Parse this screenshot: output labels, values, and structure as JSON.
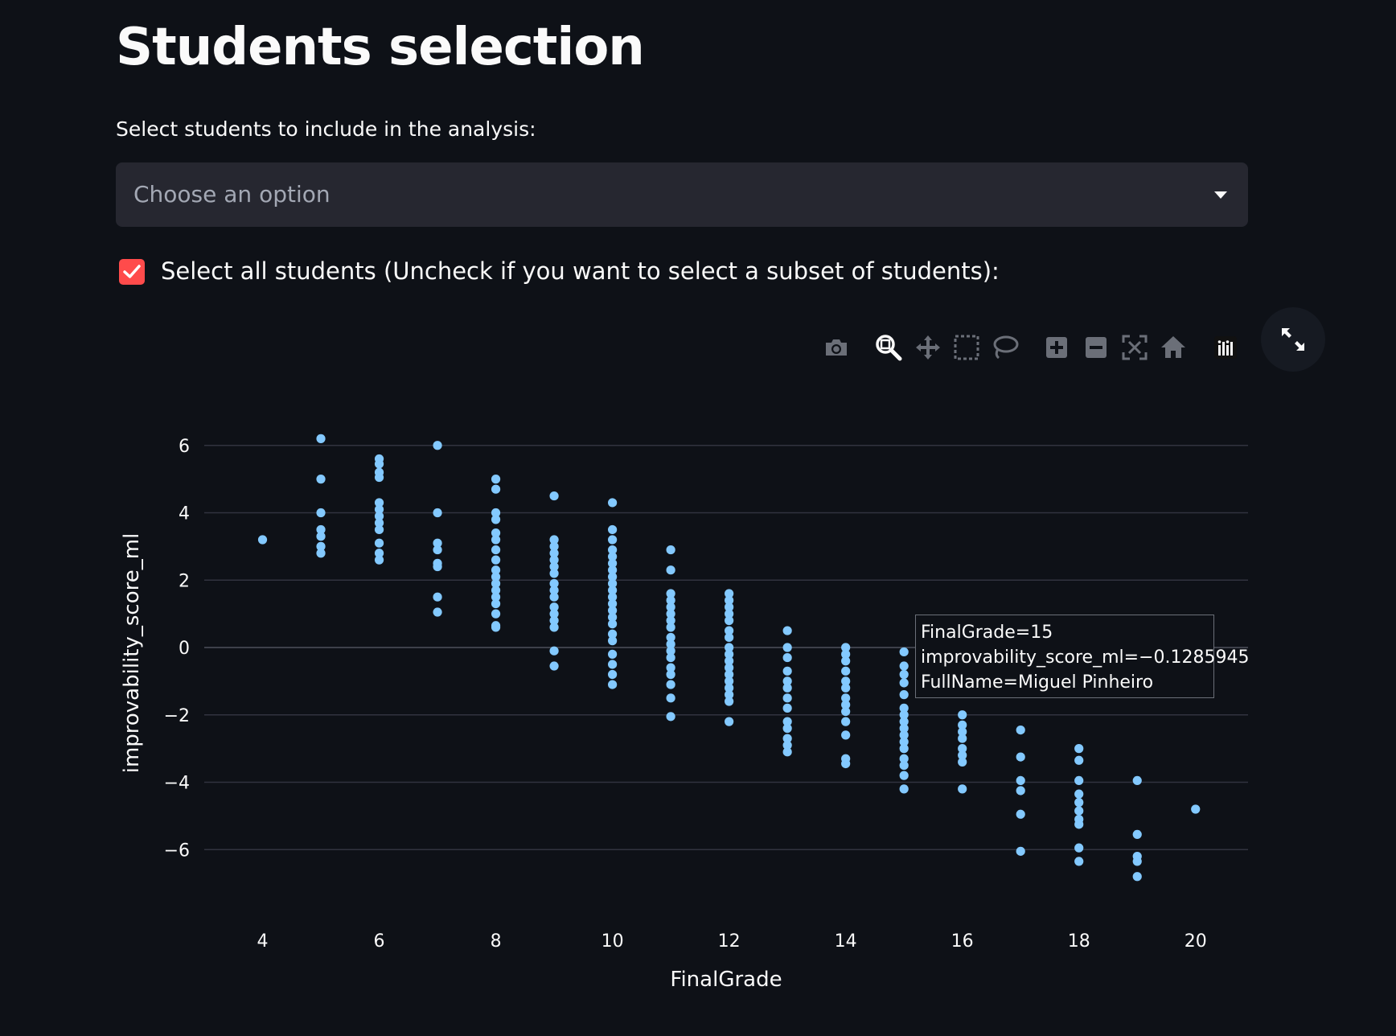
{
  "page": {
    "title": "Students selection"
  },
  "students_select": {
    "label": "Select students to include in the analysis:",
    "placeholder": "Choose an option"
  },
  "select_all": {
    "label": "Select all students (Uncheck if you want to select a subset of students):",
    "checked": true
  },
  "modebar": {
    "icons": [
      "camera-icon",
      "zoom-icon",
      "pan-icon",
      "box-select-icon",
      "lasso-icon",
      "zoom-in-icon",
      "zoom-out-icon",
      "autoscale-icon",
      "reset-axes-icon",
      "plotly-logo-icon"
    ],
    "active": "zoom-icon"
  },
  "fullscreen": {
    "icon": "expand-icon"
  },
  "colors": {
    "background": "#0e1117",
    "accent": "#ff4b4b",
    "marker": "#83c9ff",
    "grid": "#31333f"
  },
  "tooltip": {
    "line1": "FinalGrade=15",
    "line2": "improvability_score_ml=−0.1285945",
    "line3": "FullName=Miguel Pinheiro"
  },
  "chart_data": {
    "type": "scatter",
    "xlabel": "FinalGrade",
    "ylabel": "improvability_score_ml",
    "xlim": [
      3.0,
      20.9
    ],
    "ylim": [
      -8.0,
      8.0
    ],
    "x_ticks": [
      4,
      6,
      8,
      10,
      12,
      14,
      16,
      18,
      20
    ],
    "x_tick_labels": [
      "4",
      "6",
      "8",
      "10",
      "12",
      "14",
      "16",
      "18",
      "20"
    ],
    "y_ticks": [
      6,
      4,
      2,
      0,
      -2,
      -4,
      -6
    ],
    "y_tick_labels": [
      "6",
      "4",
      "2",
      "0",
      "−2",
      "−4",
      "−6"
    ],
    "grid": "horizontal",
    "points": [
      [
        4,
        3.2
      ],
      [
        5,
        6.2
      ],
      [
        5,
        5.0
      ],
      [
        5,
        4.0
      ],
      [
        5,
        3.5
      ],
      [
        5,
        3.3
      ],
      [
        5,
        3.0
      ],
      [
        5,
        2.8
      ],
      [
        6,
        5.6
      ],
      [
        6,
        5.45
      ],
      [
        6,
        5.2
      ],
      [
        6,
        5.05
      ],
      [
        6,
        4.3
      ],
      [
        6,
        4.1
      ],
      [
        6,
        3.9
      ],
      [
        6,
        3.7
      ],
      [
        6,
        3.5
      ],
      [
        6,
        3.1
      ],
      [
        6,
        2.8
      ],
      [
        6,
        2.6
      ],
      [
        7,
        6.0
      ],
      [
        7,
        4.0
      ],
      [
        7,
        3.1
      ],
      [
        7,
        2.9
      ],
      [
        7,
        2.5
      ],
      [
        7,
        2.4
      ],
      [
        7,
        1.5
      ],
      [
        7,
        1.05
      ],
      [
        8,
        5.0
      ],
      [
        8,
        4.7
      ],
      [
        8,
        4.0
      ],
      [
        8,
        3.8
      ],
      [
        8,
        3.4
      ],
      [
        8,
        3.2
      ],
      [
        8,
        2.9
      ],
      [
        8,
        2.6
      ],
      [
        8,
        2.3
      ],
      [
        8,
        2.1
      ],
      [
        8,
        1.9
      ],
      [
        8,
        1.7
      ],
      [
        8,
        1.5
      ],
      [
        8,
        1.3
      ],
      [
        8,
        1.0
      ],
      [
        8,
        0.65
      ],
      [
        8,
        0.6
      ],
      [
        9,
        4.5
      ],
      [
        9,
        3.2
      ],
      [
        9,
        3.0
      ],
      [
        9,
        2.8
      ],
      [
        9,
        2.6
      ],
      [
        9,
        2.4
      ],
      [
        9,
        2.2
      ],
      [
        9,
        1.9
      ],
      [
        9,
        1.7
      ],
      [
        9,
        1.5
      ],
      [
        9,
        1.2
      ],
      [
        9,
        1.0
      ],
      [
        9,
        0.8
      ],
      [
        9,
        0.6
      ],
      [
        9,
        -0.1
      ],
      [
        9,
        -0.55
      ],
      [
        10,
        4.3
      ],
      [
        10,
        3.5
      ],
      [
        10,
        3.2
      ],
      [
        10,
        2.9
      ],
      [
        10,
        2.7
      ],
      [
        10,
        2.5
      ],
      [
        10,
        2.3
      ],
      [
        10,
        2.1
      ],
      [
        10,
        1.9
      ],
      [
        10,
        1.7
      ],
      [
        10,
        1.5
      ],
      [
        10,
        1.3
      ],
      [
        10,
        1.1
      ],
      [
        10,
        0.9
      ],
      [
        10,
        0.7
      ],
      [
        10,
        0.4
      ],
      [
        10,
        0.2
      ],
      [
        10,
        -0.2
      ],
      [
        10,
        -0.5
      ],
      [
        10,
        -0.8
      ],
      [
        10,
        -1.1
      ],
      [
        11,
        2.9
      ],
      [
        11,
        2.3
      ],
      [
        11,
        1.6
      ],
      [
        11,
        1.4
      ],
      [
        11,
        1.2
      ],
      [
        11,
        1.0
      ],
      [
        11,
        0.8
      ],
      [
        11,
        0.6
      ],
      [
        11,
        0.3
      ],
      [
        11,
        0.1
      ],
      [
        11,
        -0.1
      ],
      [
        11,
        -0.3
      ],
      [
        11,
        -0.6
      ],
      [
        11,
        -0.8
      ],
      [
        11,
        -1.1
      ],
      [
        11,
        -1.5
      ],
      [
        11,
        -2.05
      ],
      [
        12,
        1.6
      ],
      [
        12,
        1.4
      ],
      [
        12,
        1.2
      ],
      [
        12,
        1.0
      ],
      [
        12,
        0.8
      ],
      [
        12,
        0.5
      ],
      [
        12,
        0.3
      ],
      [
        12,
        0.0
      ],
      [
        12,
        -0.2
      ],
      [
        12,
        -0.4
      ],
      [
        12,
        -0.6
      ],
      [
        12,
        -0.8
      ],
      [
        12,
        -1.0
      ],
      [
        12,
        -1.2
      ],
      [
        12,
        -1.4
      ],
      [
        12,
        -1.6
      ],
      [
        12,
        -2.2
      ],
      [
        13,
        0.5
      ],
      [
        13,
        0.0
      ],
      [
        13,
        -0.3
      ],
      [
        13,
        -0.7
      ],
      [
        13,
        -1.0
      ],
      [
        13,
        -1.2
      ],
      [
        13,
        -1.5
      ],
      [
        13,
        -1.8
      ],
      [
        13,
        -2.2
      ],
      [
        13,
        -2.4
      ],
      [
        13,
        -2.7
      ],
      [
        13,
        -2.9
      ],
      [
        13,
        -3.1
      ],
      [
        14,
        0.0
      ],
      [
        14,
        -0.2
      ],
      [
        14,
        -0.4
      ],
      [
        14,
        -0.7
      ],
      [
        14,
        -1.0
      ],
      [
        14,
        -1.2
      ],
      [
        14,
        -1.5
      ],
      [
        14,
        -1.7
      ],
      [
        14,
        -1.9
      ],
      [
        14,
        -2.2
      ],
      [
        14,
        -2.6
      ],
      [
        14,
        -3.3
      ],
      [
        14,
        -3.45
      ],
      [
        15,
        -0.13
      ],
      [
        15,
        -0.55
      ],
      [
        15,
        -0.8
      ],
      [
        15,
        -1.05
      ],
      [
        15,
        -1.4
      ],
      [
        15,
        -1.8
      ],
      [
        15,
        -2.0
      ],
      [
        15,
        -2.2
      ],
      [
        15,
        -2.4
      ],
      [
        15,
        -2.6
      ],
      [
        15,
        -2.8
      ],
      [
        15,
        -3.0
      ],
      [
        15,
        -3.3
      ],
      [
        15,
        -3.5
      ],
      [
        15,
        -3.8
      ],
      [
        15,
        -4.2
      ],
      [
        16,
        -2.0
      ],
      [
        16,
        -2.3
      ],
      [
        16,
        -2.5
      ],
      [
        16,
        -2.7
      ],
      [
        16,
        -3.0
      ],
      [
        16,
        -3.2
      ],
      [
        16,
        -3.4
      ],
      [
        16,
        -4.2
      ],
      [
        17,
        -2.45
      ],
      [
        17,
        -3.25
      ],
      [
        17,
        -3.95
      ],
      [
        17,
        -4.25
      ],
      [
        17,
        -4.95
      ],
      [
        17,
        -6.05
      ],
      [
        18,
        -3.0
      ],
      [
        18,
        -3.35
      ],
      [
        18,
        -3.95
      ],
      [
        18,
        -4.35
      ],
      [
        18,
        -4.6
      ],
      [
        18,
        -4.85
      ],
      [
        18,
        -5.1
      ],
      [
        18,
        -5.25
      ],
      [
        18,
        -5.95
      ],
      [
        18,
        -6.35
      ],
      [
        19,
        -3.95
      ],
      [
        19,
        -5.55
      ],
      [
        19,
        -6.2
      ],
      [
        19,
        -6.35
      ],
      [
        19,
        -6.8
      ],
      [
        20,
        -4.8
      ]
    ],
    "highlight": [
      15,
      -0.1285945
    ]
  }
}
